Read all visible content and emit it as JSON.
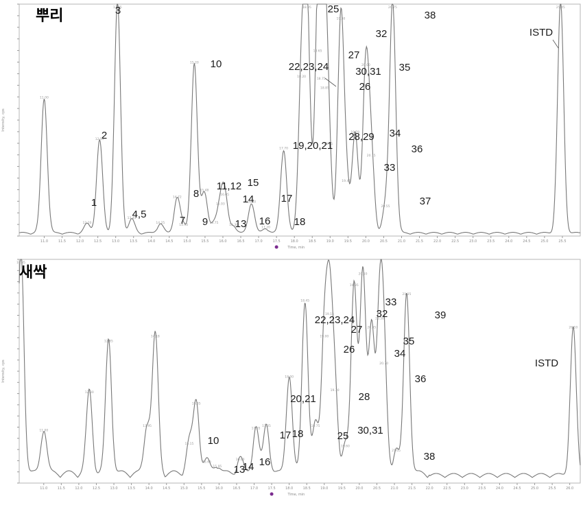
{
  "chart_data": [
    {
      "type": "line",
      "title": "뿌리",
      "x_range": [
        10.3,
        26.0
      ],
      "y_range": [
        0,
        100
      ],
      "x_tick_labels": [
        "11.0",
        "11.5",
        "12.0",
        "12.5",
        "13.0",
        "13.5",
        "14.0",
        "14.5",
        "15.0",
        "15.5",
        "16.0",
        "16.5",
        "17.0",
        "17.5",
        "18.0",
        "18.5",
        "19.0",
        "19.5",
        "20.0",
        "20.5",
        "21.0",
        "21.5",
        "22.0",
        "22.5",
        "23.0",
        "23.5",
        "24.0",
        "24.5",
        "25.0",
        "25.5"
      ],
      "peaks": [
        {
          "label": "",
          "rt": 11.0,
          "height": 58
        },
        {
          "label": "1",
          "rt": 12.2,
          "height": 4
        },
        {
          "label": "2",
          "rt": 12.55,
          "height": 40
        },
        {
          "label": "3",
          "rt": 13.05,
          "height": 100
        },
        {
          "label": "4,5",
          "rt": 13.45,
          "height": 6
        },
        {
          "label": "7",
          "rt": 14.25,
          "height": 4
        },
        {
          "label": "8",
          "rt": 14.72,
          "height": 15
        },
        {
          "label": "9",
          "rt": 14.9,
          "height": 3
        },
        {
          "label": "10",
          "rt": 15.2,
          "height": 73
        },
        {
          "label": "11,12",
          "rt": 15.48,
          "height": 18
        },
        {
          "label": "13",
          "rt": 15.75,
          "height": 4
        },
        {
          "label": "14",
          "rt": 15.93,
          "height": 12
        },
        {
          "label": "15",
          "rt": 16.05,
          "height": 16
        },
        {
          "label": "16",
          "rt": 16.3,
          "height": 3
        },
        {
          "label": "17",
          "rt": 16.8,
          "height": 13
        },
        {
          "label": "18",
          "rt": 17.2,
          "height": 2
        },
        {
          "label": "19,20,21",
          "rt": 17.7,
          "height": 36
        },
        {
          "label": "22,23,24",
          "rt": 18.2,
          "height": 67
        },
        {
          "label": "25",
          "rt": 18.35,
          "height": 100
        },
        {
          "label": "26",
          "rt": 18.85,
          "height": 62
        },
        {
          "label": "27",
          "rt": 18.65,
          "height": 78
        },
        {
          "label": "28,29",
          "rt": 18.95,
          "height": 38
        },
        {
          "label": "30,31",
          "rt": 18.75,
          "height": 66
        },
        {
          "label": "32",
          "rt": 19.3,
          "height": 92
        },
        {
          "label": "33",
          "rt": 19.45,
          "height": 22
        },
        {
          "label": "34",
          "rt": 19.7,
          "height": 43
        },
        {
          "label": "35",
          "rt": 20.0,
          "height": 72
        },
        {
          "label": "36",
          "rt": 20.15,
          "height": 33
        },
        {
          "label": "37",
          "rt": 20.55,
          "height": 11
        },
        {
          "label": "38",
          "rt": 20.75,
          "height": 100
        },
        {
          "label": "ISTD",
          "rt": 25.45,
          "height": 100
        }
      ],
      "annotations": [
        "1",
        "2",
        "3",
        "4,5",
        "7",
        "8",
        "9",
        "10",
        "11,12",
        "13",
        "14",
        "15",
        "16",
        "17",
        "18",
        "19,20,21",
        "22,23,24",
        "25",
        "26",
        "27",
        "28,29",
        "30,31",
        "32",
        "33",
        "34",
        "35",
        "36",
        "37",
        "38",
        "ISTD"
      ]
    },
    {
      "type": "line",
      "title": "새싹",
      "x_range": [
        10.3,
        26.3
      ],
      "y_range": [
        0,
        100
      ],
      "x_tick_labels": [
        "11.0",
        "11.5",
        "12.0",
        "12.5",
        "13.0",
        "13.5",
        "14.0",
        "14.5",
        "15.0",
        "15.5",
        "16.0",
        "16.5",
        "17.0",
        "17.5",
        "18.0",
        "18.5",
        "19.0",
        "19.5",
        "20.0",
        "20.5",
        "21.0",
        "21.5",
        "22.0",
        "22.5",
        "23.0",
        "23.5",
        "24.0",
        "24.5",
        "25.0",
        "25.5",
        "26.0"
      ],
      "peaks": [
        {
          "label": "",
          "rt": 10.35,
          "height": 100
        },
        {
          "label": "",
          "rt": 11.0,
          "height": 20
        },
        {
          "label": "",
          "rt": 12.3,
          "height": 37
        },
        {
          "label": "",
          "rt": 12.85,
          "height": 60
        },
        {
          "label": "",
          "rt": 13.95,
          "height": 22
        },
        {
          "label": "",
          "rt": 14.18,
          "height": 62
        },
        {
          "label": "10",
          "rt": 15.15,
          "height": 14
        },
        {
          "label": "",
          "rt": 15.35,
          "height": 32
        },
        {
          "label": "13",
          "rt": 15.65,
          "height": 6
        },
        {
          "label": "14",
          "rt": 15.95,
          "height": 4
        },
        {
          "label": "16",
          "rt": 16.6,
          "height": 7
        },
        {
          "label": "17",
          "rt": 17.05,
          "height": 21
        },
        {
          "label": "18",
          "rt": 17.35,
          "height": 22
        },
        {
          "label": "20,21",
          "rt": 18.0,
          "height": 44
        },
        {
          "label": "22,23,24",
          "rt": 18.45,
          "height": 78
        },
        {
          "label": "25",
          "rt": 18.75,
          "height": 22
        },
        {
          "label": "26",
          "rt": 19.0,
          "height": 62
        },
        {
          "label": "27",
          "rt": 19.15,
          "height": 72
        },
        {
          "label": "28",
          "rt": 19.3,
          "height": 38
        },
        {
          "label": "30,31",
          "rt": 19.6,
          "height": 13
        },
        {
          "label": "32",
          "rt": 19.85,
          "height": 85
        },
        {
          "label": "33",
          "rt": 20.1,
          "height": 90
        },
        {
          "label": "34",
          "rt": 20.35,
          "height": 66
        },
        {
          "label": "35",
          "rt": 20.58,
          "height": 70
        },
        {
          "label": "36",
          "rt": 20.7,
          "height": 50
        },
        {
          "label": "38",
          "rt": 21.05,
          "height": 11
        },
        {
          "label": "39",
          "rt": 21.35,
          "height": 81
        },
        {
          "label": "ISTD",
          "rt": 26.1,
          "height": 66
        }
      ],
      "annotations": [
        "10",
        "13",
        "14",
        "16",
        "17",
        "18",
        "20,21",
        "22,23,24",
        "25",
        "26",
        "27",
        "28",
        "30,31",
        "32",
        "33",
        "34",
        "35",
        "36",
        "38",
        "39",
        "ISTD"
      ]
    }
  ]
}
